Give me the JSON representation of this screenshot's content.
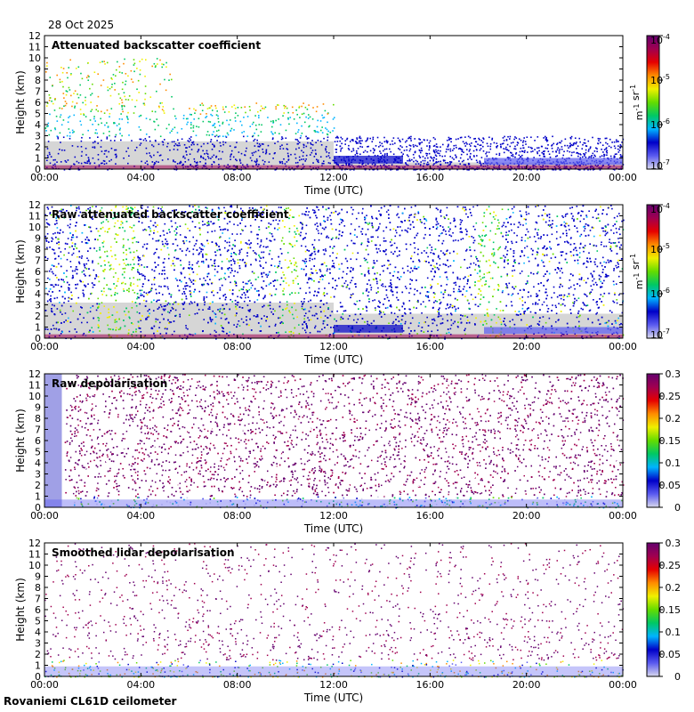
{
  "date": "28 Oct 2025",
  "instrument": "Rovaniemi CL61D ceilometer",
  "chart_data": [
    {
      "type": "heatmap",
      "title": "Attenuated backscatter coefficient",
      "xlabel": "Time (UTC)",
      "ylabel": "Height (km)",
      "x_ticks": [
        "00:00",
        "04:00",
        "08:00",
        "12:00",
        "16:00",
        "20:00",
        "00:00"
      ],
      "y_ticks": [
        "0",
        "1",
        "2",
        "3",
        "4",
        "5",
        "6",
        "7",
        "8",
        "9",
        "10",
        "11",
        "12"
      ],
      "ylim": [
        0,
        12
      ],
      "colorbar": {
        "scale": "log",
        "range": [
          1e-07,
          0.0001
        ],
        "ticks": [
          "10^-7",
          "10^-6",
          "10^-5",
          "10^-4"
        ],
        "units": "m^-1 sr^-1"
      }
    },
    {
      "type": "heatmap",
      "title": "Raw attenuated backscatter coefficient",
      "xlabel": "Time (UTC)",
      "ylabel": "Height (km)",
      "x_ticks": [
        "00:00",
        "04:00",
        "08:00",
        "12:00",
        "16:00",
        "20:00",
        "00:00"
      ],
      "y_ticks": [
        "0",
        "1",
        "2",
        "3",
        "4",
        "5",
        "6",
        "7",
        "8",
        "9",
        "10",
        "11",
        "12"
      ],
      "ylim": [
        0,
        12
      ],
      "colorbar": {
        "scale": "log",
        "range": [
          1e-07,
          0.0001
        ],
        "ticks": [
          "10^-7",
          "10^-6",
          "10^-5",
          "10^-4"
        ],
        "units": "m^-1 sr^-1"
      }
    },
    {
      "type": "heatmap",
      "title": "Raw depolarisation",
      "xlabel": "Time (UTC)",
      "ylabel": "Height (km)",
      "x_ticks": [
        "00:00",
        "04:00",
        "08:00",
        "12:00",
        "16:00",
        "20:00",
        "00:00"
      ],
      "y_ticks": [
        "0",
        "1",
        "2",
        "3",
        "4",
        "5",
        "6",
        "7",
        "8",
        "9",
        "10",
        "11",
        "12"
      ],
      "ylim": [
        0,
        12
      ],
      "colorbar": {
        "scale": "linear",
        "range": [
          0,
          0.3
        ],
        "ticks": [
          "0",
          "0.05",
          "0.1",
          "0.15",
          "0.2",
          "0.25",
          "0.3"
        ],
        "units": ""
      }
    },
    {
      "type": "heatmap",
      "title": "Smoothed lidar depolarisation",
      "xlabel": "Time (UTC)",
      "ylabel": "Height (km)",
      "x_ticks": [
        "00:00",
        "04:00",
        "08:00",
        "12:00",
        "16:00",
        "20:00",
        "00:00"
      ],
      "y_ticks": [
        "0",
        "1",
        "2",
        "3",
        "4",
        "5",
        "6",
        "7",
        "8",
        "9",
        "10",
        "11",
        "12"
      ],
      "ylim": [
        0,
        12
      ],
      "colorbar": {
        "scale": "linear",
        "range": [
          0,
          0.3
        ],
        "ticks": [
          "0",
          "0.05",
          "0.1",
          "0.15",
          "0.2",
          "0.25",
          "0.3"
        ],
        "units": ""
      }
    }
  ],
  "colors": {
    "colormap": [
      "#d8d8ec",
      "#5a5af0",
      "#0000c8",
      "#00b4ff",
      "#00c864",
      "#64dc00",
      "#f0f000",
      "#ff8c00",
      "#e60000",
      "#a00050",
      "#64006e"
    ],
    "gray_layer": "#d6d6d6",
    "background": "#ffffff"
  }
}
